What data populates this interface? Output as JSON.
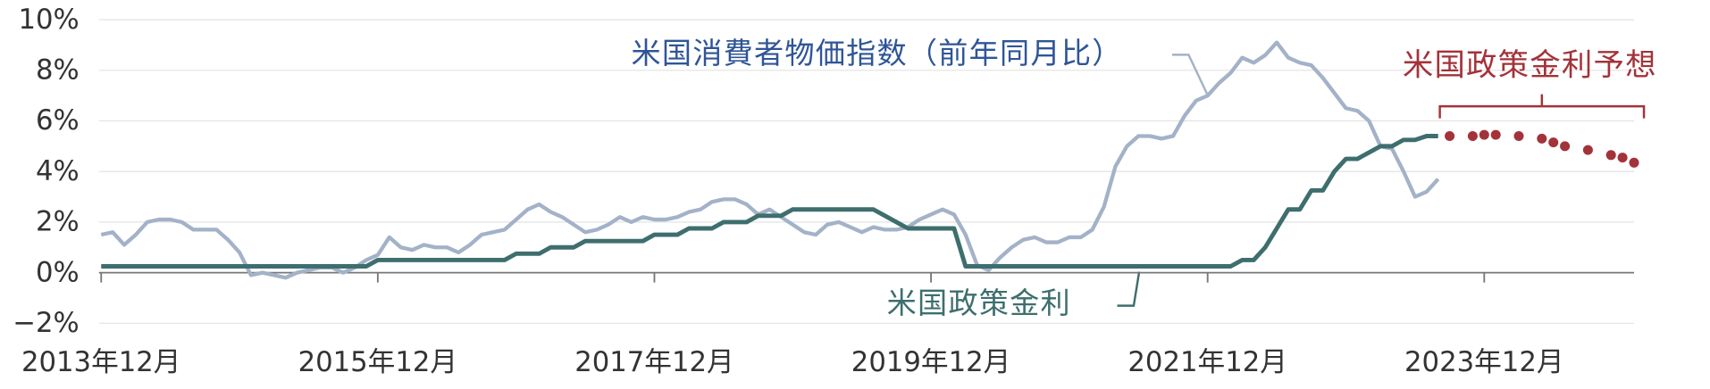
{
  "chart_data": {
    "type": "line",
    "xlim": [
      "2013-12",
      "2025-01"
    ],
    "xticks": [
      {
        "value": "2013-12",
        "label": "2013年12月"
      },
      {
        "value": "2015-12",
        "label": "2015年12月"
      },
      {
        "value": "2017-12",
        "label": "2017年12月"
      },
      {
        "value": "2019-12",
        "label": "2019年12月"
      },
      {
        "value": "2021-12",
        "label": "2021年12月"
      },
      {
        "value": "2023-12",
        "label": "2023年12月"
      }
    ],
    "ylim": [
      -2,
      10
    ],
    "yticks": [
      {
        "value": -2,
        "label": "−2%"
      },
      {
        "value": 0,
        "label": "0%"
      },
      {
        "value": 2,
        "label": "2%"
      },
      {
        "value": 4,
        "label": "4%"
      },
      {
        "value": 6,
        "label": "6%"
      },
      {
        "value": 8,
        "label": "8%"
      },
      {
        "value": 10,
        "label": "10%"
      }
    ],
    "grid": true,
    "annotations": [
      {
        "text": "米国消費者物価指数（前年同月比）",
        "color": "#2f5597"
      },
      {
        "text": "米国政策金利",
        "color": "#3e6e6e"
      },
      {
        "text": "米国政策金利予想",
        "color": "#a3333a"
      }
    ],
    "series": [
      {
        "color": "#a3b2c8",
        "line_style": "solid",
        "x": [
          "2013-12",
          "2014-01",
          "2014-02",
          "2014-03",
          "2014-04",
          "2014-05",
          "2014-06",
          "2014-07",
          "2014-08",
          "2014-09",
          "2014-10",
          "2014-11",
          "2014-12",
          "2015-01",
          "2015-02",
          "2015-03",
          "2015-04",
          "2015-05",
          "2015-06",
          "2015-07",
          "2015-08",
          "2015-09",
          "2015-10",
          "2015-11",
          "2015-12",
          "2016-01",
          "2016-02",
          "2016-03",
          "2016-04",
          "2016-05",
          "2016-06",
          "2016-07",
          "2016-08",
          "2016-09",
          "2016-10",
          "2016-11",
          "2016-12",
          "2017-01",
          "2017-02",
          "2017-03",
          "2017-04",
          "2017-05",
          "2017-06",
          "2017-07",
          "2017-08",
          "2017-09",
          "2017-10",
          "2017-11",
          "2017-12",
          "2018-01",
          "2018-02",
          "2018-03",
          "2018-04",
          "2018-05",
          "2018-06",
          "2018-07",
          "2018-08",
          "2018-09",
          "2018-10",
          "2018-11",
          "2018-12",
          "2019-01",
          "2019-02",
          "2019-03",
          "2019-04",
          "2019-05",
          "2019-06",
          "2019-07",
          "2019-08",
          "2019-09",
          "2019-10",
          "2019-11",
          "2019-12",
          "2020-01",
          "2020-02",
          "2020-03",
          "2020-04",
          "2020-05",
          "2020-06",
          "2020-07",
          "2020-08",
          "2020-09",
          "2020-10",
          "2020-11",
          "2020-12",
          "2021-01",
          "2021-02",
          "2021-03",
          "2021-04",
          "2021-05",
          "2021-06",
          "2021-07",
          "2021-08",
          "2021-09",
          "2021-10",
          "2021-11",
          "2021-12",
          "2022-01",
          "2022-02",
          "2022-03",
          "2022-04",
          "2022-05",
          "2022-06",
          "2022-07",
          "2022-08",
          "2022-09",
          "2022-10",
          "2022-11",
          "2022-12",
          "2023-01",
          "2023-02",
          "2023-03",
          "2023-04",
          "2023-05",
          "2023-06",
          "2023-07",
          "2023-08"
        ],
        "values": [
          1.5,
          1.6,
          1.1,
          1.5,
          2.0,
          2.1,
          2.1,
          2.0,
          1.7,
          1.7,
          1.7,
          1.3,
          0.8,
          -0.1,
          0.0,
          -0.1,
          -0.2,
          0.0,
          0.1,
          0.2,
          0.2,
          0.0,
          0.2,
          0.5,
          0.7,
          1.4,
          1.0,
          0.9,
          1.1,
          1.0,
          1.0,
          0.8,
          1.1,
          1.5,
          1.6,
          1.7,
          2.1,
          2.5,
          2.7,
          2.4,
          2.2,
          1.9,
          1.6,
          1.7,
          1.9,
          2.2,
          2.0,
          2.2,
          2.1,
          2.1,
          2.2,
          2.4,
          2.5,
          2.8,
          2.9,
          2.9,
          2.7,
          2.3,
          2.5,
          2.2,
          1.9,
          1.6,
          1.5,
          1.9,
          2.0,
          1.8,
          1.6,
          1.8,
          1.7,
          1.7,
          1.8,
          2.1,
          2.3,
          2.5,
          2.3,
          1.5,
          0.3,
          0.1,
          0.6,
          1.0,
          1.3,
          1.4,
          1.2,
          1.2,
          1.4,
          1.4,
          1.7,
          2.6,
          4.2,
          5.0,
          5.4,
          5.4,
          5.3,
          5.4,
          6.2,
          6.8,
          7.0,
          7.5,
          7.9,
          8.5,
          8.3,
          8.6,
          9.1,
          8.5,
          8.3,
          8.2,
          7.7,
          7.1,
          6.5,
          6.4,
          6.0,
          5.0,
          4.9,
          4.0,
          3.0,
          3.2,
          3.7
        ]
      },
      {
        "color": "#3e6e6e",
        "line_style": "solid",
        "x": [
          "2013-12",
          "2014-01",
          "2014-02",
          "2014-03",
          "2014-04",
          "2014-05",
          "2014-06",
          "2014-07",
          "2014-08",
          "2014-09",
          "2014-10",
          "2014-11",
          "2014-12",
          "2015-01",
          "2015-02",
          "2015-03",
          "2015-04",
          "2015-05",
          "2015-06",
          "2015-07",
          "2015-08",
          "2015-09",
          "2015-10",
          "2015-11",
          "2015-12",
          "2016-01",
          "2016-02",
          "2016-03",
          "2016-04",
          "2016-05",
          "2016-06",
          "2016-07",
          "2016-08",
          "2016-09",
          "2016-10",
          "2016-11",
          "2016-12",
          "2017-01",
          "2017-02",
          "2017-03",
          "2017-04",
          "2017-05",
          "2017-06",
          "2017-07",
          "2017-08",
          "2017-09",
          "2017-10",
          "2017-11",
          "2017-12",
          "2018-01",
          "2018-02",
          "2018-03",
          "2018-04",
          "2018-05",
          "2018-06",
          "2018-07",
          "2018-08",
          "2018-09",
          "2018-10",
          "2018-11",
          "2018-12",
          "2019-01",
          "2019-02",
          "2019-03",
          "2019-04",
          "2019-05",
          "2019-06",
          "2019-07",
          "2019-08",
          "2019-09",
          "2019-10",
          "2019-11",
          "2019-12",
          "2020-01",
          "2020-02",
          "2020-03",
          "2020-04",
          "2020-05",
          "2020-06",
          "2020-07",
          "2020-08",
          "2020-09",
          "2020-10",
          "2020-11",
          "2020-12",
          "2021-01",
          "2021-02",
          "2021-03",
          "2021-04",
          "2021-05",
          "2021-06",
          "2021-07",
          "2021-08",
          "2021-09",
          "2021-10",
          "2021-11",
          "2021-12",
          "2022-01",
          "2022-02",
          "2022-03",
          "2022-04",
          "2022-05",
          "2022-06",
          "2022-07",
          "2022-08",
          "2022-09",
          "2022-10",
          "2022-11",
          "2022-12",
          "2023-01",
          "2023-02",
          "2023-03",
          "2023-04",
          "2023-05",
          "2023-06",
          "2023-07",
          "2023-08"
        ],
        "values": [
          0.25,
          0.25,
          0.25,
          0.25,
          0.25,
          0.25,
          0.25,
          0.25,
          0.25,
          0.25,
          0.25,
          0.25,
          0.25,
          0.25,
          0.25,
          0.25,
          0.25,
          0.25,
          0.25,
          0.25,
          0.25,
          0.25,
          0.25,
          0.25,
          0.5,
          0.5,
          0.5,
          0.5,
          0.5,
          0.5,
          0.5,
          0.5,
          0.5,
          0.5,
          0.5,
          0.5,
          0.75,
          0.75,
          0.75,
          1.0,
          1.0,
          1.0,
          1.25,
          1.25,
          1.25,
          1.25,
          1.25,
          1.25,
          1.5,
          1.5,
          1.5,
          1.75,
          1.75,
          1.75,
          2.0,
          2.0,
          2.0,
          2.25,
          2.25,
          2.25,
          2.5,
          2.5,
          2.5,
          2.5,
          2.5,
          2.5,
          2.5,
          2.5,
          2.25,
          2.0,
          1.75,
          1.75,
          1.75,
          1.75,
          1.75,
          0.25,
          0.25,
          0.25,
          0.25,
          0.25,
          0.25,
          0.25,
          0.25,
          0.25,
          0.25,
          0.25,
          0.25,
          0.25,
          0.25,
          0.25,
          0.25,
          0.25,
          0.25,
          0.25,
          0.25,
          0.25,
          0.25,
          0.25,
          0.25,
          0.5,
          0.5,
          1.0,
          1.75,
          2.5,
          2.5,
          3.25,
          3.25,
          4.0,
          4.5,
          4.5,
          4.75,
          5.0,
          5.0,
          5.25,
          5.25,
          5.4,
          5.4
        ]
      },
      {
        "color": "#a3333a",
        "line_style": "dots",
        "x": [
          "2023-09",
          "2023-11",
          "2023-12",
          "2024-01",
          "2024-03",
          "2024-05",
          "2024-06",
          "2024-07",
          "2024-09",
          "2024-11",
          "2024-12",
          "2025-01"
        ],
        "values": [
          5.4,
          5.4,
          5.45,
          5.45,
          5.4,
          5.3,
          5.15,
          5.0,
          4.85,
          4.65,
          4.55,
          4.35
        ]
      }
    ]
  }
}
